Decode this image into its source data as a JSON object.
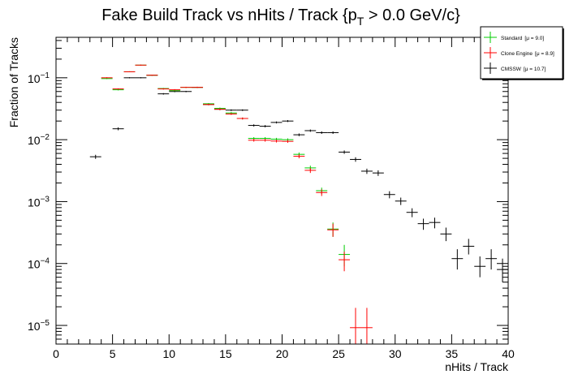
{
  "chart_data": {
    "type": "scatter",
    "title": "Fake Build Track vs nHits / Track {p",
    "title_sub": "T",
    "title_tail": " > 0.0 GeV/c}",
    "xlabel": "nHits / Track",
    "ylabel": "Fraction of Tracks",
    "xlim": [
      0,
      40
    ],
    "ylim": [
      5e-06,
      0.45
    ],
    "yscale": "log",
    "grid": false,
    "legend_position": "top-right",
    "x_ticks": [
      0,
      5,
      10,
      15,
      20,
      25,
      30,
      35,
      40
    ],
    "y_ticks": [
      {
        "value": 1e-05,
        "base": "10",
        "exp": "−5"
      },
      {
        "value": 0.0001,
        "base": "10",
        "exp": "−4"
      },
      {
        "value": 0.001,
        "base": "10",
        "exp": "−3"
      },
      {
        "value": 0.01,
        "base": "10",
        "exp": "−2"
      },
      {
        "value": 0.1,
        "base": "10",
        "exp": "−1"
      }
    ],
    "series": [
      {
        "name": "CMSSW",
        "mean_label": "[μ = 10.7]",
        "color": "#000000",
        "x": [
          3.5,
          5.5,
          6.5,
          7.5,
          8.5,
          9.5,
          10.5,
          11.5,
          12.5,
          13.5,
          14.5,
          15.5,
          16.5,
          17.5,
          18.5,
          19.5,
          20.5,
          21.5,
          22.5,
          23.5,
          24.5,
          25.5,
          26.5,
          27.5,
          28.5,
          29.5,
          30.5,
          31.5,
          32.5,
          33.5,
          34.5,
          35.5,
          36.5,
          37.5,
          38.5,
          39.5
        ],
        "y": [
          0.0053,
          0.015,
          0.1,
          0.1,
          0.11,
          0.055,
          0.06,
          0.06,
          0.07,
          0.037,
          0.031,
          0.03,
          0.03,
          0.017,
          0.0165,
          0.019,
          0.02,
          0.012,
          0.014,
          0.013,
          0.013,
          0.0063,
          0.0048,
          0.0031,
          0.0029,
          0.0013,
          0.00102,
          0.00067,
          0.00044,
          0.00046,
          0.0003,
          0.00012,
          0.00019,
          9e-05,
          0.00012,
          8e-05
        ],
        "err_low": [
          0.0004,
          0.0008,
          0.002,
          0.002,
          0.002,
          0.0015,
          0.0015,
          0.0015,
          0.0015,
          0.001,
          0.001,
          0.0009,
          0.0009,
          0.0007,
          0.0007,
          0.0007,
          0.0007,
          0.0006,
          0.0006,
          0.0006,
          0.0006,
          0.0004,
          0.0004,
          0.0003,
          0.0003,
          0.00017,
          0.00014,
          0.00011,
          9e-05,
          9e-05,
          7e-05,
          4e-05,
          5e-05,
          3e-05,
          4e-05,
          3e-05
        ],
        "err_high": [
          0.0004,
          0.0008,
          0.002,
          0.002,
          0.002,
          0.0015,
          0.0015,
          0.0015,
          0.0015,
          0.001,
          0.001,
          0.0009,
          0.0009,
          0.0007,
          0.0007,
          0.0007,
          0.0007,
          0.0006,
          0.0006,
          0.0006,
          0.0006,
          0.0004,
          0.0004,
          0.0003,
          0.0003,
          0.00017,
          0.00014,
          0.00011,
          9e-05,
          9e-05,
          8e-05,
          5e-05,
          6e-05,
          4e-05,
          5e-05,
          4e-05
        ]
      },
      {
        "name": "Standard",
        "mean_label": "[μ =  9.0]",
        "color": "#00cc00",
        "x": [
          4.5,
          5.5,
          6.5,
          7.5,
          8.5,
          9.5,
          10.5,
          11.5,
          12.5,
          13.5,
          14.5,
          15.5,
          16.5,
          17.5,
          18.5,
          19.5,
          20.5,
          21.5,
          22.5,
          23.5,
          24.5,
          25.5
        ],
        "y": [
          0.097,
          0.064,
          0.125,
          0.16,
          0.11,
          0.067,
          0.062,
          0.07,
          0.07,
          0.038,
          0.032,
          0.027,
          0.022,
          0.0105,
          0.0105,
          0.0102,
          0.01,
          0.0058,
          0.0035,
          0.0015,
          0.00036,
          0.00014
        ],
        "err_low": [
          0.002,
          0.0015,
          0.002,
          0.003,
          0.002,
          0.0015,
          0.0015,
          0.0015,
          0.0015,
          0.001,
          0.001,
          0.0009,
          0.0008,
          0.0005,
          0.0005,
          0.0005,
          0.0005,
          0.0004,
          0.0003,
          0.00018,
          9e-05,
          5e-05
        ],
        "err_high": [
          0.002,
          0.0015,
          0.002,
          0.003,
          0.002,
          0.0015,
          0.0015,
          0.0015,
          0.0015,
          0.001,
          0.001,
          0.0009,
          0.0008,
          0.0005,
          0.0005,
          0.0005,
          0.0005,
          0.0004,
          0.0003,
          0.00018,
          0.0001,
          6e-05
        ]
      },
      {
        "name": "Clone Engine",
        "mean_label": "[μ =  8.9]",
        "color": "#ff0000",
        "x": [
          4.5,
          5.5,
          6.5,
          7.5,
          8.5,
          9.5,
          10.5,
          11.5,
          12.5,
          13.5,
          14.5,
          15.5,
          16.5,
          17.5,
          18.5,
          19.5,
          20.5,
          21.5,
          22.5,
          23.5,
          24.5,
          25.5,
          26.5,
          27.5
        ],
        "y": [
          0.1,
          0.066,
          0.125,
          0.16,
          0.11,
          0.066,
          0.064,
          0.07,
          0.07,
          0.037,
          0.031,
          0.026,
          0.022,
          0.0098,
          0.0098,
          0.0095,
          0.0094,
          0.0054,
          0.0032,
          0.0014,
          0.00035,
          0.000115,
          9.2e-06,
          9.2e-06
        ],
        "err_low": [
          0.002,
          0.0015,
          0.002,
          0.003,
          0.002,
          0.0015,
          0.0015,
          0.0015,
          0.0015,
          0.001,
          0.001,
          0.0009,
          0.0008,
          0.0005,
          0.0005,
          0.0005,
          0.0005,
          0.0004,
          0.0003,
          0.00017,
          8e-05,
          4e-05,
          4.5e-06,
          4.5e-06
        ],
        "err_high": [
          0.002,
          0.0015,
          0.002,
          0.003,
          0.002,
          0.0015,
          0.0015,
          0.0015,
          0.0015,
          0.001,
          0.001,
          0.0009,
          0.0008,
          0.0005,
          0.0005,
          0.0005,
          0.0005,
          0.0004,
          0.0003,
          0.00017,
          9e-05,
          4e-05,
          1e-05,
          1e-05
        ]
      }
    ],
    "legend_order": [
      "Standard",
      "Clone Engine",
      "CMSSW"
    ]
  }
}
